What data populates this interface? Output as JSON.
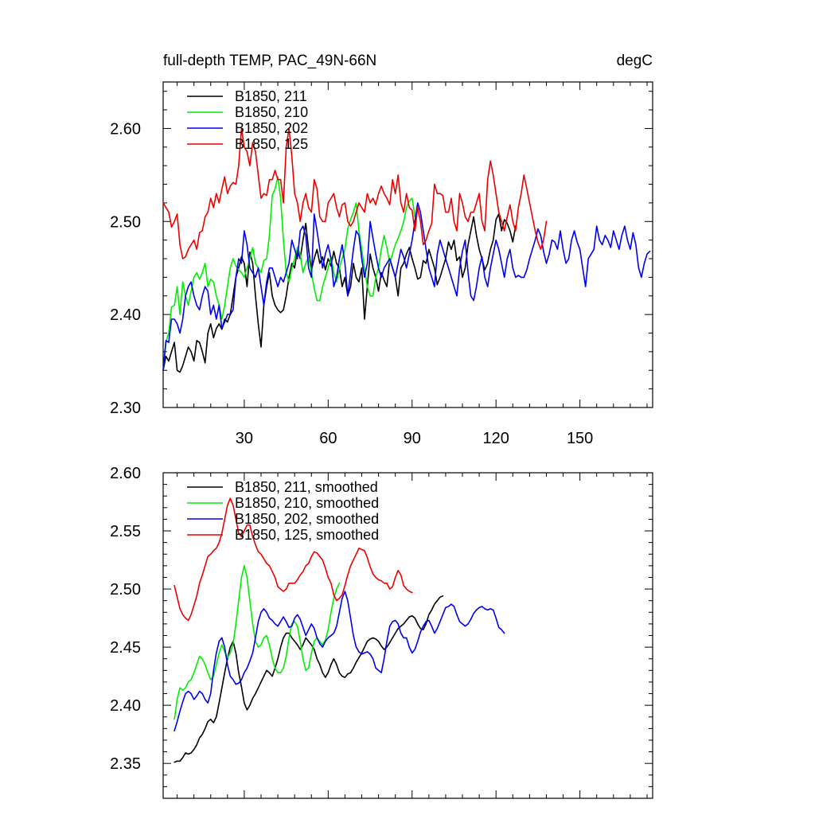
{
  "figure": {
    "title_left": "full-depth TEMP, PAC_49N-66N",
    "title_right": "degC"
  },
  "chart_data": [
    {
      "type": "line",
      "xlim": [
        1,
        176
      ],
      "ylim": [
        2.3,
        2.65
      ],
      "xticks": [
        30,
        60,
        90,
        120,
        150
      ],
      "xticklabels": [
        "30",
        "60",
        "90",
        "120",
        "150"
      ],
      "yticks": [
        2.3,
        2.4,
        2.5,
        2.6
      ],
      "yticklabels": [
        "2.30",
        "2.40",
        "2.50",
        "2.60"
      ],
      "legend_position": "top-left",
      "series": [
        {
          "name": "B1850, 211",
          "color": "#000000",
          "x_start": 1,
          "values": [
            2.34,
            2.355,
            2.35,
            2.36,
            2.37,
            2.34,
            2.338,
            2.345,
            2.355,
            2.365,
            2.36,
            2.35,
            2.372,
            2.37,
            2.36,
            2.348,
            2.38,
            2.39,
            2.375,
            2.385,
            2.39,
            2.384,
            2.395,
            2.392,
            2.4,
            2.42,
            2.44,
            2.45,
            2.462,
            2.455,
            2.43,
            2.467,
            2.455,
            2.42,
            2.39,
            2.365,
            2.41,
            2.43,
            2.445,
            2.42,
            2.41,
            2.405,
            2.402,
            2.405,
            2.42,
            2.44,
            2.455,
            2.45,
            2.47,
            2.46,
            2.48,
            2.498,
            2.47,
            2.448,
            2.46,
            2.47,
            2.455,
            2.462,
            2.448,
            2.46,
            2.452,
            2.468,
            2.455,
            2.45,
            2.43,
            2.44,
            2.42,
            2.43,
            2.455,
            2.44,
            2.435,
            2.45,
            2.395,
            2.43,
            2.465,
            2.45,
            2.44,
            2.425,
            2.445,
            2.437,
            2.43,
            2.46,
            2.45,
            2.44,
            2.42,
            2.45,
            2.455,
            2.465,
            2.472,
            2.46,
            2.45,
            2.438,
            2.44,
            2.458,
            2.455,
            2.47,
            2.46,
            2.45,
            2.432,
            2.44,
            2.45,
            2.46,
            2.478,
            2.47,
            2.48,
            2.458,
            2.462,
            2.44,
            2.45,
            2.475,
            2.49,
            2.505,
            2.485,
            2.47,
            2.46,
            2.448,
            2.455,
            2.47,
            2.48,
            2.502,
            2.508,
            2.49,
            2.502,
            2.498,
            2.49,
            2.478,
            2.495
          ]
        },
        {
          "name": "B1850, 210",
          "color": "#00ee00",
          "x_start": 1,
          "values": [
            2.34,
            2.37,
            2.38,
            2.408,
            2.41,
            2.43,
            2.4,
            2.435,
            2.42,
            2.41,
            2.425,
            2.44,
            2.445,
            2.438,
            2.445,
            2.455,
            2.43,
            2.438,
            2.435,
            2.42,
            2.41,
            2.395,
            2.41,
            2.43,
            2.45,
            2.46,
            2.452,
            2.448,
            2.445,
            2.44,
            2.45,
            2.46,
            2.472,
            2.455,
            2.45,
            2.445,
            2.458,
            2.46,
            2.485,
            2.528,
            2.535,
            2.548,
            2.525,
            2.48,
            2.445,
            2.435,
            2.45,
            2.46,
            2.472,
            2.465,
            2.445,
            2.455,
            2.462,
            2.445,
            2.428,
            2.415,
            2.415,
            2.43,
            2.44,
            2.45,
            2.462,
            2.445,
            2.435,
            2.45,
            2.46,
            2.47,
            2.492,
            2.502,
            2.51,
            2.52,
            2.49,
            2.47,
            2.45,
            2.43,
            2.42,
            2.42,
            2.44,
            2.45,
            2.47,
            2.485,
            2.472,
            2.455,
            2.465,
            2.475,
            2.482,
            2.49,
            2.5,
            2.515,
            2.522,
            2.525,
            2.505
          ]
        },
        {
          "name": "B1850, 202",
          "color": "#0000ee",
          "x_start": 1,
          "values": [
            2.34,
            2.372,
            2.37,
            2.395,
            2.395,
            2.39,
            2.38,
            2.395,
            2.42,
            2.43,
            2.435,
            2.42,
            2.41,
            2.405,
            2.42,
            2.43,
            2.425,
            2.4,
            2.41,
            2.395,
            2.41,
            2.385,
            2.392,
            2.4,
            2.4,
            2.405,
            2.44,
            2.46,
            2.455,
            2.49,
            2.475,
            2.45,
            2.445,
            2.44,
            2.45,
            2.43,
            2.41,
            2.435,
            2.45,
            2.45,
            2.44,
            2.43,
            2.44,
            2.435,
            2.445,
            2.455,
            2.48,
            2.47,
            2.46,
            2.49,
            2.495,
            2.485,
            2.45,
            2.44,
            2.508,
            2.49,
            2.47,
            2.45,
            2.465,
            2.475,
            2.46,
            2.43,
            2.44,
            2.46,
            2.475,
            2.455,
            2.42,
            2.445,
            2.47,
            2.49,
            2.485,
            2.46,
            2.44,
            2.455,
            2.5,
            2.482,
            2.465,
            2.45,
            2.44,
            2.45,
            2.455,
            2.46,
            2.45,
            2.44,
            2.455,
            2.47,
            2.462,
            2.45,
            2.465,
            2.48,
            2.5,
            2.52,
            2.51,
            2.49,
            2.47,
            2.45,
            2.44,
            2.43,
            2.465,
            2.48,
            2.47,
            2.46,
            2.45,
            2.44,
            2.43,
            2.42,
            2.45,
            2.468,
            2.48,
            2.445,
            2.42,
            2.415,
            2.43,
            2.45,
            2.462,
            2.44,
            2.43,
            2.45,
            2.465,
            2.48,
            2.47,
            2.455,
            2.44,
            2.46,
            2.47,
            2.45,
            2.44,
            2.442,
            2.44,
            2.44,
            2.448,
            2.46,
            2.47,
            2.48,
            2.492,
            2.485,
            2.468,
            2.455,
            2.465,
            2.48,
            2.478,
            2.47,
            2.49,
            2.47,
            2.455,
            2.46,
            2.48,
            2.49,
            2.478,
            2.47,
            2.45,
            2.43,
            2.46,
            2.465,
            2.47,
            2.495,
            2.48,
            2.475,
            2.485,
            2.48,
            2.472,
            2.49,
            2.48,
            2.47,
            2.485,
            2.495,
            2.48,
            2.47,
            2.488,
            2.475,
            2.45,
            2.44,
            2.455,
            2.465,
            2.468
          ]
        },
        {
          "name": "B1850, 125",
          "color": "#ee0000",
          "x_start": 1,
          "values": [
            2.52,
            2.515,
            2.51,
            2.494,
            2.5,
            2.508,
            2.475,
            2.46,
            2.462,
            2.47,
            2.475,
            2.48,
            2.47,
            2.488,
            2.49,
            2.505,
            2.51,
            2.525,
            2.515,
            2.53,
            2.52,
            2.535,
            2.548,
            2.53,
            2.538,
            2.542,
            2.54,
            2.56,
            2.6,
            2.58,
            2.575,
            2.56,
            2.585,
            2.575,
            2.55,
            2.525,
            2.53,
            2.528,
            2.545,
            2.545,
            2.555,
            2.545,
            2.545,
            2.52,
            2.58,
            2.6,
            2.57,
            2.53,
            2.52,
            2.5,
            2.52,
            2.53,
            2.515,
            2.51,
            2.545,
            2.535,
            2.505,
            2.5,
            2.5,
            2.52,
            2.525,
            2.53,
            2.515,
            2.505,
            2.518,
            2.52,
            2.5,
            2.495,
            2.5,
            2.51,
            2.52,
            2.515,
            2.51,
            2.53,
            2.52,
            2.525,
            2.518,
            2.53,
            2.538,
            2.53,
            2.525,
            2.518,
            2.545,
            2.53,
            2.55,
            2.52,
            2.51,
            2.53,
            2.515,
            2.512,
            2.49,
            2.515,
            2.5,
            2.475,
            2.48,
            2.49,
            2.498,
            2.54,
            2.53,
            2.53,
            2.528,
            2.51,
            2.51,
            2.525,
            2.5,
            2.49,
            2.53,
            2.52,
            2.505,
            2.5,
            2.51,
            2.51,
            2.52,
            2.53,
            2.5,
            2.49,
            2.545,
            2.565,
            2.55,
            2.53,
            2.51,
            2.5,
            2.49,
            2.505,
            2.518,
            2.5,
            2.49,
            2.515,
            2.53,
            2.55,
            2.535,
            2.52,
            2.505,
            2.49,
            2.478,
            2.47,
            2.48,
            2.5
          ]
        }
      ]
    },
    {
      "type": "line",
      "xlim": [
        1,
        176
      ],
      "ylim": [
        2.32,
        2.6
      ],
      "xticks": [
        30,
        60,
        90,
        120,
        150
      ],
      "xticklabels": [],
      "yticks": [
        2.35,
        2.4,
        2.45,
        2.5,
        2.55,
        2.6
      ],
      "yticklabels": [
        "2.35",
        "2.40",
        "2.45",
        "2.50",
        "2.55",
        "2.60"
      ],
      "legend_position": "top-left",
      "series": [
        {
          "name": "B1850, 211, smoothed",
          "color": "#000000",
          "x_start": 5,
          "values": [
            2.351,
            2.352,
            2.352,
            2.355,
            2.359,
            2.358,
            2.359,
            2.362,
            2.366,
            2.372,
            2.375,
            2.38,
            2.386,
            2.388,
            2.385,
            2.39,
            2.402,
            2.415,
            2.428,
            2.44,
            2.45,
            2.455,
            2.445,
            2.428,
            2.416,
            2.402,
            2.396,
            2.4,
            2.406,
            2.41,
            2.415,
            2.42,
            2.425,
            2.43,
            2.428,
            2.425,
            2.432,
            2.44,
            2.45,
            2.458,
            2.462,
            2.462,
            2.458,
            2.455,
            2.452,
            2.448,
            2.452,
            2.458,
            2.455,
            2.452,
            2.448,
            2.44,
            2.435,
            2.428,
            2.424,
            2.428,
            2.435,
            2.44,
            2.435,
            2.428,
            2.425,
            2.424,
            2.427,
            2.428,
            2.432,
            2.437,
            2.441,
            2.445,
            2.45,
            2.455,
            2.457,
            2.458,
            2.457,
            2.455,
            2.451,
            2.448,
            2.45,
            2.454,
            2.458,
            2.462,
            2.466,
            2.468,
            2.47,
            2.473,
            2.476,
            2.477,
            2.475,
            2.47,
            2.466,
            2.465,
            2.47,
            2.478,
            2.482,
            2.487,
            2.49,
            2.493,
            2.494
          ]
        },
        {
          "name": "B1850, 210, smoothed",
          "color": "#00ee00",
          "x_start": 5,
          "values": [
            2.388,
            2.405,
            2.415,
            2.413,
            2.415,
            2.42,
            2.422,
            2.428,
            2.435,
            2.442,
            2.44,
            2.435,
            2.428,
            2.422,
            2.425,
            2.435,
            2.445,
            2.452,
            2.446,
            2.441,
            2.445,
            2.453,
            2.47,
            2.49,
            2.51,
            2.52,
            2.51,
            2.49,
            2.47,
            2.455,
            2.45,
            2.452,
            2.458,
            2.46,
            2.452,
            2.44,
            2.432,
            2.428,
            2.428,
            2.432,
            2.442,
            2.458,
            2.47,
            2.472,
            2.468,
            2.455,
            2.44,
            2.43,
            2.432,
            2.445,
            2.455,
            2.458,
            2.455,
            2.452,
            2.456,
            2.465,
            2.48,
            2.492,
            2.5,
            2.505
          ]
        },
        {
          "name": "B1850, 202, smoothed",
          "color": "#0000ee",
          "x_start": 5,
          "values": [
            2.378,
            2.386,
            2.395,
            2.403,
            2.41,
            2.412,
            2.41,
            2.405,
            2.408,
            2.412,
            2.41,
            2.405,
            2.402,
            2.41,
            2.43,
            2.445,
            2.455,
            2.458,
            2.45,
            2.435,
            2.425,
            2.422,
            2.418,
            2.419,
            2.422,
            2.428,
            2.432,
            2.438,
            2.445,
            2.458,
            2.472,
            2.48,
            2.483,
            2.48,
            2.475,
            2.473,
            2.47,
            2.468,
            2.472,
            2.476,
            2.472,
            2.467,
            2.468,
            2.475,
            2.478,
            2.474,
            2.467,
            2.46,
            2.465,
            2.47,
            2.466,
            2.458,
            2.453,
            2.45,
            2.455,
            2.458,
            2.46,
            2.462,
            2.468,
            2.48,
            2.492,
            2.498,
            2.49,
            2.475,
            2.46,
            2.45,
            2.446,
            2.444,
            2.445,
            2.446,
            2.444,
            2.44,
            2.432,
            2.43,
            2.428,
            2.44,
            2.455,
            2.468,
            2.472,
            2.473,
            2.47,
            2.462,
            2.458,
            2.458,
            2.45,
            2.445,
            2.448,
            2.455,
            2.463,
            2.468,
            2.472,
            2.473,
            2.468,
            2.462,
            2.466,
            2.472,
            2.478,
            2.484,
            2.485,
            2.487,
            2.485,
            2.478,
            2.472,
            2.47,
            2.468,
            2.47,
            2.474,
            2.479,
            2.482,
            2.484,
            2.485,
            2.483,
            2.482,
            2.483,
            2.482,
            2.475,
            2.467,
            2.465,
            2.462
          ]
        },
        {
          "name": "B1850, 125, smoothed",
          "color": "#ee0000",
          "x_start": 5,
          "values": [
            2.503,
            2.493,
            2.483,
            2.478,
            2.475,
            2.473,
            2.478,
            2.486,
            2.494,
            2.505,
            2.512,
            2.52,
            2.528,
            2.53,
            2.533,
            2.535,
            2.54,
            2.548,
            2.56,
            2.572,
            2.578,
            2.572,
            2.56,
            2.548,
            2.545,
            2.55,
            2.555,
            2.555,
            2.545,
            2.538,
            2.532,
            2.53,
            2.526,
            2.522,
            2.52,
            2.515,
            2.51,
            2.502,
            2.5,
            2.498,
            2.5,
            2.505,
            2.505,
            2.505,
            2.508,
            2.512,
            2.515,
            2.52,
            2.522,
            2.528,
            2.532,
            2.531,
            2.528,
            2.525,
            2.518,
            2.51,
            2.505,
            2.495,
            2.49,
            2.492,
            2.495,
            2.503,
            2.512,
            2.52,
            2.525,
            2.53,
            2.535,
            2.534,
            2.533,
            2.527,
            2.519,
            2.513,
            2.51,
            2.508,
            2.507,
            2.505,
            2.505,
            2.5,
            2.502,
            2.51,
            2.516,
            2.512,
            2.503,
            2.5,
            2.498,
            2.497
          ]
        }
      ]
    }
  ]
}
